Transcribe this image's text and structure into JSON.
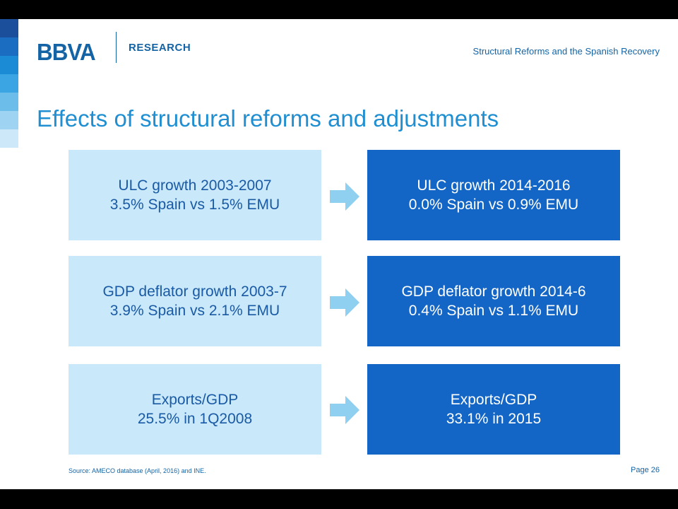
{
  "header": {
    "logo_text": "BBVA",
    "unit": "RESEARCH",
    "presentation_title": "Structural Reforms and the Spanish Recovery"
  },
  "slide_title": "Effects of structural reforms and adjustments",
  "comparisons": [
    {
      "before": [
        "ULC growth 2003-2007",
        "3.5% Spain vs 1.5% EMU"
      ],
      "after": [
        "ULC growth 2014-2016",
        "0.0% Spain vs 0.9% EMU"
      ]
    },
    {
      "before": [
        "GDP deflator growth 2003-7",
        "3.9% Spain vs 2.1% EMU"
      ],
      "after": [
        "GDP deflator growth 2014-6",
        "0.4% Spain vs 1.1% EMU"
      ]
    },
    {
      "before": [
        "Exports/GDP",
        "25.5% in 1Q2008"
      ],
      "after": [
        "Exports/GDP",
        "33.1% in 2015"
      ]
    }
  ],
  "footer": {
    "source": "Source: AMECO database (April, 2016) and INE.",
    "page": "Page 26"
  },
  "colors": {
    "stripe": [
      "#1b4f9c",
      "#1a6dc1",
      "#1c8bd6",
      "#3aa5e2",
      "#6cbde9",
      "#9ed3f1",
      "#cde8f8"
    ],
    "light_box": "#c9e9fb",
    "dark_box": "#1366c5",
    "arrow": "#8fd0f0"
  },
  "icons": {
    "arrow": "right-arrow-icon"
  }
}
